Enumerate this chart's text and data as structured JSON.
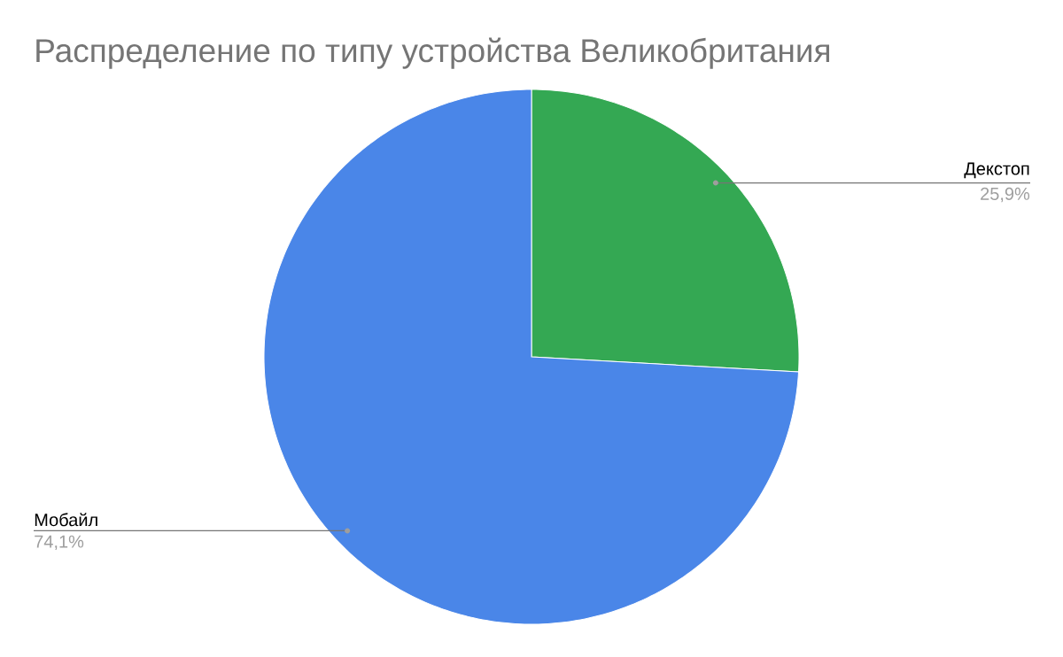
{
  "chart_data": {
    "type": "pie",
    "title": "Распределение по типу устройства Великобритания",
    "categories": [
      "Декстоп",
      "Мобайл"
    ],
    "values": [
      25.9,
      74.1
    ],
    "colors": [
      "#34a853",
      "#4a86e8"
    ],
    "value_labels": [
      "25,9%",
      "74,1%"
    ]
  }
}
